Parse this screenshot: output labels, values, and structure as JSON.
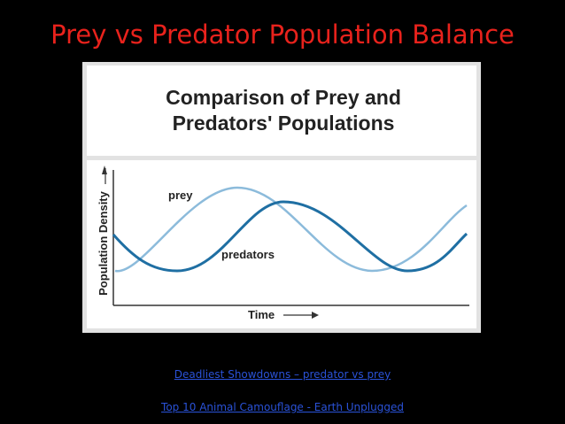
{
  "slide": {
    "title": "Prey vs Predator Population Balance"
  },
  "figure": {
    "title_lines": [
      "Comparison of Prey and",
      "Predators' Populations"
    ],
    "prey_label": "prey",
    "predators_label": "predators",
    "y_axis_label": "Population Density",
    "x_axis_label": "Time"
  },
  "links": [
    "Deadliest Showdowns – predator vs prey",
    "Top 10 Animal Camouflage - Earth Unplugged"
  ]
}
